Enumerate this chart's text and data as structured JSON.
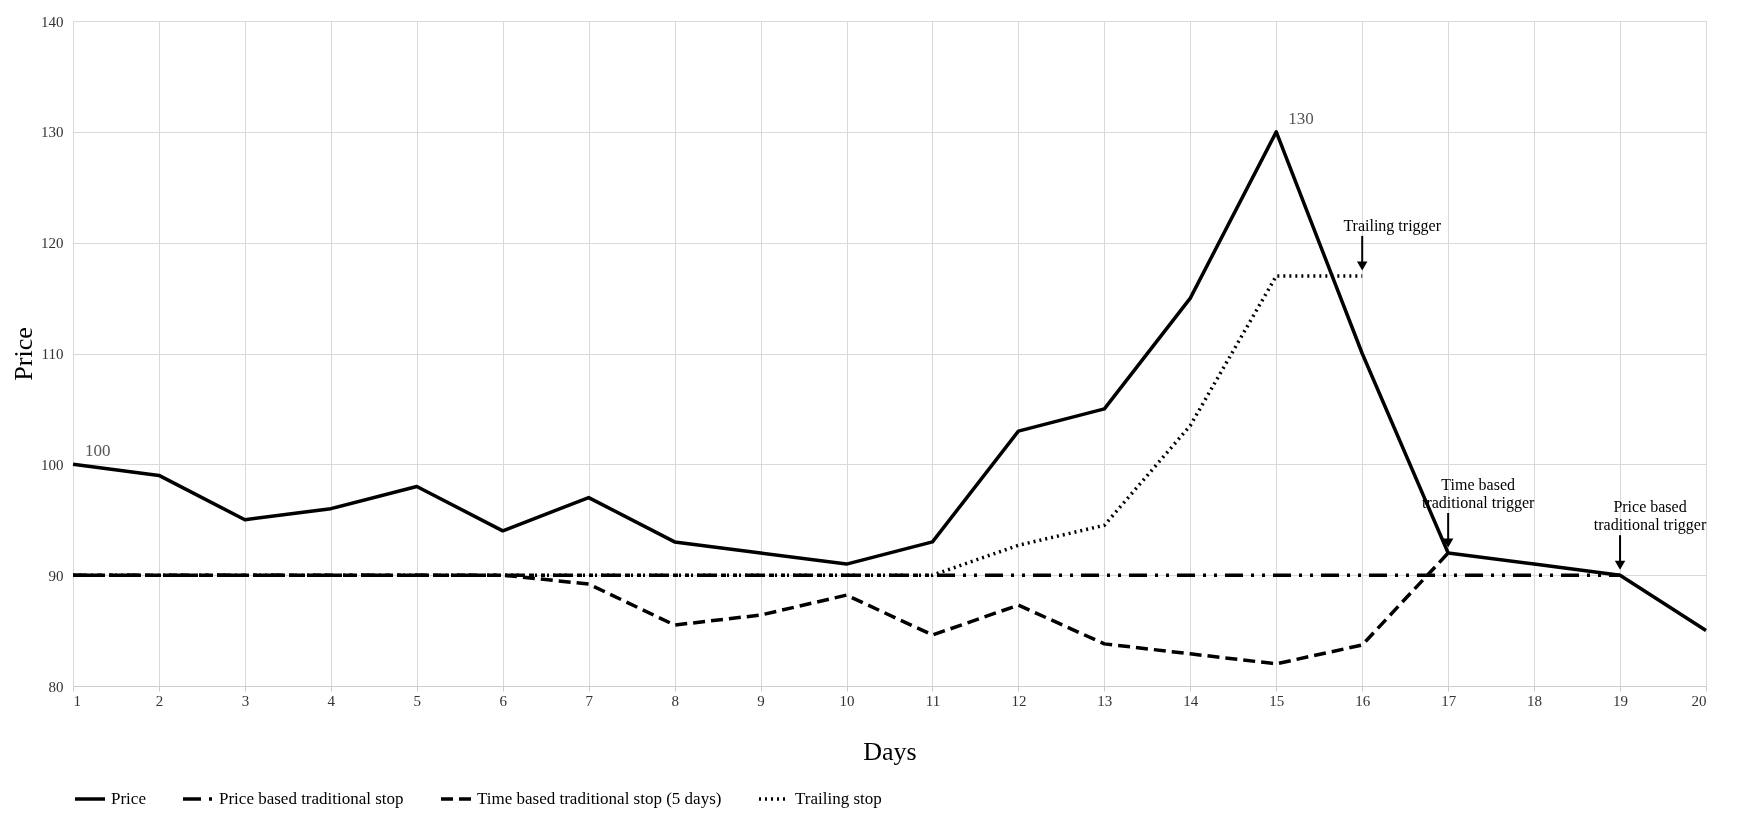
{
  "chart_data": {
    "type": "line",
    "xlabel": "Days",
    "ylabel": "Price",
    "x": [
      1,
      2,
      3,
      4,
      5,
      6,
      7,
      8,
      9,
      10,
      11,
      12,
      13,
      14,
      15,
      16,
      17,
      18,
      19,
      20
    ],
    "xlim": [
      1,
      20
    ],
    "xticks": [
      1,
      2,
      3,
      4,
      5,
      6,
      7,
      8,
      9,
      10,
      11,
      12,
      13,
      14,
      15,
      16,
      17,
      18,
      19,
      20
    ],
    "ylim": [
      80,
      140
    ],
    "yticks": [
      80,
      90,
      100,
      110,
      120,
      130,
      140
    ],
    "grid": true,
    "legend": "bottom",
    "series": [
      {
        "name": "Price",
        "color": "#000000",
        "line_style": "solid",
        "values": [
          100,
          99,
          95,
          96,
          98,
          94,
          97,
          93,
          92,
          91,
          93,
          103,
          105,
          115,
          130,
          110,
          92,
          91,
          90,
          85
        ],
        "value_labels": [
          "100",
          null,
          null,
          null,
          null,
          null,
          null,
          null,
          null,
          null,
          null,
          null,
          null,
          null,
          "130",
          null,
          null,
          null,
          null,
          null
        ]
      },
      {
        "name": "Price based traditional stop",
        "color": "#000000",
        "line_style": "dashdot",
        "values": [
          90,
          90,
          90,
          90,
          90,
          90,
          90,
          90,
          90,
          90,
          90,
          90,
          90,
          90,
          90,
          90,
          90,
          90,
          90,
          null
        ]
      },
      {
        "name": "Time based traditional stop (5 days)",
        "color": "#000000",
        "line_style": "dashed",
        "values": [
          90,
          90,
          90,
          90,
          90,
          90,
          89.2,
          85.5,
          86.4,
          88.2,
          84.6,
          87.3,
          83.8,
          82.9,
          82,
          83.7,
          92,
          null,
          null,
          null
        ]
      },
      {
        "name": "Trailing stop",
        "color": "#000000",
        "line_style": "dotted",
        "values": [
          90,
          90,
          90,
          90,
          90,
          90,
          90,
          90,
          90,
          90,
          90,
          92.7,
          94.5,
          103.5,
          117,
          117,
          null,
          null,
          null,
          null
        ]
      }
    ],
    "annotations": [
      {
        "text": "Trailing trigger",
        "x": 16,
        "y": 117
      },
      {
        "text": "Time based\ntraditional trigger",
        "x": 17,
        "y": 92
      },
      {
        "text": "Price based\ntraditional trigger",
        "x": 19,
        "y": 90
      }
    ]
  }
}
